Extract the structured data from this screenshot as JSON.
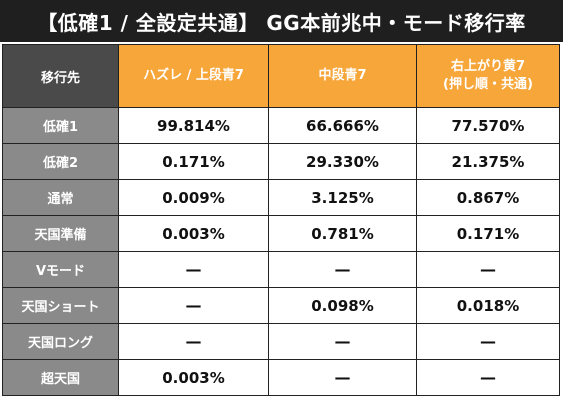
{
  "title": "【低確1 / 全設定共通】 GG本前兆中・モード移行率",
  "table": {
    "corner_label": "移行先",
    "columns": [
      {
        "line1": "ハズレ / 上段青7",
        "line2": ""
      },
      {
        "line1": "中段青7",
        "line2": ""
      },
      {
        "line1": "右上がり黄7",
        "line2": "(押し順・共通)"
      }
    ],
    "rows": [
      {
        "label": "低確1",
        "values": [
          "99.814%",
          "66.666%",
          "77.570%"
        ]
      },
      {
        "label": "低確2",
        "values": [
          "0.171%",
          "29.330%",
          "21.375%"
        ]
      },
      {
        "label": "通常",
        "values": [
          "0.009%",
          "3.125%",
          "0.867%"
        ]
      },
      {
        "label": "天国準備",
        "values": [
          "0.003%",
          "0.781%",
          "0.171%"
        ]
      },
      {
        "label": "Vモード",
        "values": [
          "—",
          "—",
          "—"
        ]
      },
      {
        "label": "天国ショート",
        "values": [
          "—",
          "0.098%",
          "0.018%"
        ]
      },
      {
        "label": "天国ロング",
        "values": [
          "—",
          "—",
          "—"
        ]
      },
      {
        "label": "超天国",
        "values": [
          "0.003%",
          "—",
          "—"
        ]
      }
    ]
  },
  "colors": {
    "title_bg": "#1f1f1f",
    "header_orange": "#f7a63a",
    "corner_dark_gray": "#4a4a4a",
    "row_label_gray": "#8a8a8a"
  }
}
